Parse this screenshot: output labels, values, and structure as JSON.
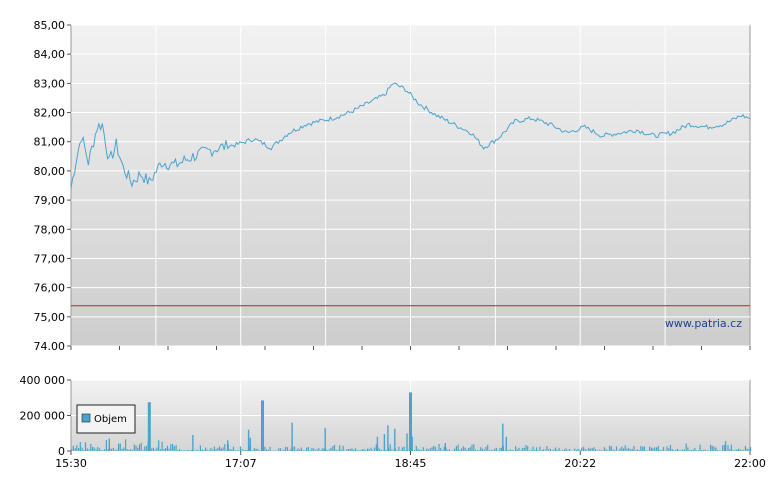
{
  "chart_data": [
    {
      "type": "line",
      "y_ticks": [
        "85,00",
        "84,00",
        "83,00",
        "82,00",
        "81,00",
        "80,00",
        "79,00",
        "78,00",
        "77,00",
        "76,00",
        "75,00",
        "74.00"
      ],
      "ylim": [
        74,
        85
      ],
      "x_ticks": [
        "15:30",
        "17:07",
        "18:45",
        "20:22",
        "22:00"
      ],
      "xlim": [
        "15:30",
        "22:00"
      ],
      "grid": true,
      "reference_line": 75.38,
      "watermark": "www.patria.cz",
      "colors": {
        "price": "#4aa3cf",
        "reference": "#cc2200",
        "grid": "#ffffff"
      },
      "keypoints": [
        [
          "15:30",
          79.4
        ],
        [
          "15:33",
          80.4
        ],
        [
          "15:36",
          81.2
        ],
        [
          "15:40",
          80.3
        ],
        [
          "15:45",
          81.5
        ],
        [
          "15:48",
          81.6
        ],
        [
          "15:52",
          80.3
        ],
        [
          "15:56",
          80.9
        ],
        [
          "16:00",
          80.1
        ],
        [
          "16:05",
          79.6
        ],
        [
          "16:10",
          79.9
        ],
        [
          "16:15",
          79.6
        ],
        [
          "16:22",
          80.3
        ],
        [
          "16:30",
          80.2
        ],
        [
          "16:40",
          80.5
        ],
        [
          "16:55",
          80.8
        ],
        [
          "17:05",
          80.9
        ],
        [
          "17:15",
          81.1
        ],
        [
          "17:25",
          80.8
        ],
        [
          "17:35",
          81.3
        ],
        [
          "17:45",
          81.6
        ],
        [
          "18:00",
          81.8
        ],
        [
          "18:10",
          82.0
        ],
        [
          "18:20",
          82.3
        ],
        [
          "18:30",
          82.6
        ],
        [
          "18:35",
          83.0
        ],
        [
          "18:42",
          82.8
        ],
        [
          "18:50",
          82.3
        ],
        [
          "19:00",
          81.9
        ],
        [
          "19:10",
          81.6
        ],
        [
          "19:20",
          81.3
        ],
        [
          "19:27",
          80.8
        ],
        [
          "19:35",
          81.1
        ],
        [
          "19:45",
          81.7
        ],
        [
          "19:55",
          81.8
        ],
        [
          "20:05",
          81.6
        ],
        [
          "20:15",
          81.3
        ],
        [
          "20:25",
          81.5
        ],
        [
          "20:35",
          81.2
        ],
        [
          "20:45",
          81.3
        ],
        [
          "20:55",
          81.4
        ],
        [
          "21:05",
          81.2
        ],
        [
          "21:15",
          81.3
        ],
        [
          "21:25",
          81.6
        ],
        [
          "21:35",
          81.5
        ],
        [
          "21:45",
          81.6
        ],
        [
          "21:55",
          81.9
        ],
        [
          "22:00",
          81.8
        ]
      ]
    },
    {
      "type": "bar",
      "legend": "Objem",
      "y_ticks": [
        "400 000",
        "200 000",
        "0"
      ],
      "ylim": [
        0,
        400000
      ],
      "x_ticks": [
        "15:30",
        "17:07",
        "18:45",
        "20:22",
        "22:00"
      ],
      "xlim": [
        "15:30",
        "22:00"
      ],
      "grid": true,
      "colors": {
        "bar": "#4aa3cf"
      },
      "spikes": [
        [
          "16:15",
          275000
        ],
        [
          "17:12",
          120000
        ],
        [
          "17:13",
          75000
        ],
        [
          "17:20",
          285000
        ],
        [
          "17:37",
          160000
        ],
        [
          "17:56",
          130000
        ],
        [
          "18:26",
          80000
        ],
        [
          "18:30",
          95000
        ],
        [
          "18:32",
          145000
        ],
        [
          "18:36",
          125000
        ],
        [
          "18:43",
          100000
        ],
        [
          "18:45",
          330000
        ],
        [
          "18:46",
          80000
        ],
        [
          "19:38",
          155000
        ],
        [
          "19:40",
          80000
        ],
        [
          "21:46",
          55000
        ],
        [
          "15:52",
          70000
        ],
        [
          "16:40",
          90000
        ],
        [
          "17:00",
          60000
        ],
        [
          "19:05",
          45000
        ]
      ]
    }
  ]
}
